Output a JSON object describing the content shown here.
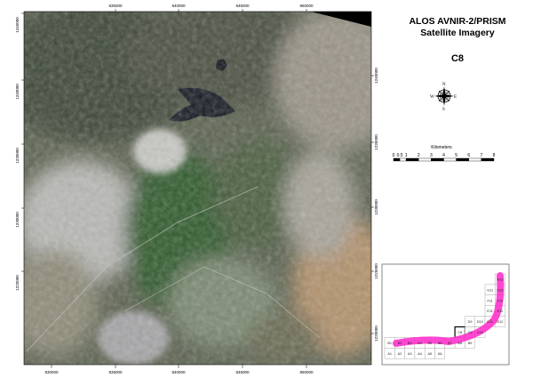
{
  "title": {
    "line1": "ALOS AVNIR-2/PRISM",
    "line2": "Satellite Imagery",
    "sheet": "C8"
  },
  "compass": {
    "icon": "north-arrow-compass-rose",
    "n": "N",
    "s": "S",
    "e": "E",
    "w": "W"
  },
  "scale_bar": {
    "unit": "Kilometers",
    "labels": [
      "0",
      "0.5",
      "1",
      "2",
      "3",
      "4",
      "5",
      "6",
      "7",
      "8"
    ]
  },
  "axes": {
    "top": [
      "835000",
      "840000",
      "845000",
      "850000"
    ],
    "bottom": [
      "830000",
      "835000",
      "840000",
      "845000",
      "850000"
    ],
    "left": [
      "1245000",
      "1240000",
      "1235000",
      "1230000",
      "1225000"
    ],
    "right": [
      "1240000",
      "1235000",
      "1230000",
      "1225000",
      "1220000"
    ]
  },
  "index_map": {
    "highlighted": "C8",
    "swath_color": "#ff33cc",
    "cells": [
      {
        "id": "H12",
        "r": 0,
        "c": 11
      },
      {
        "id": "G11",
        "r": 1,
        "c": 10
      },
      {
        "id": "G12",
        "r": 1,
        "c": 11
      },
      {
        "id": "F11",
        "r": 2,
        "c": 10
      },
      {
        "id": "F12",
        "r": 2,
        "c": 11
      },
      {
        "id": "E11",
        "r": 3,
        "c": 10
      },
      {
        "id": "E12",
        "r": 3,
        "c": 11
      },
      {
        "id": "D9",
        "r": 4,
        "c": 8
      },
      {
        "id": "D10",
        "r": 4,
        "c": 9
      },
      {
        "id": "D11",
        "r": 4,
        "c": 10
      },
      {
        "id": "D12",
        "r": 4,
        "c": 11
      },
      {
        "id": "C8",
        "r": 5,
        "c": 7
      },
      {
        "id": "C9",
        "r": 5,
        "c": 8
      },
      {
        "id": "C10",
        "r": 5,
        "c": 9
      },
      {
        "id": "B1",
        "r": 6,
        "c": 0
      },
      {
        "id": "B2",
        "r": 6,
        "c": 1
      },
      {
        "id": "B3",
        "r": 6,
        "c": 2
      },
      {
        "id": "B4",
        "r": 6,
        "c": 3
      },
      {
        "id": "B5",
        "r": 6,
        "c": 4
      },
      {
        "id": "B6",
        "r": 6,
        "c": 5
      },
      {
        "id": "B7",
        "r": 6,
        "c": 6
      },
      {
        "id": "B8",
        "r": 6,
        "c": 7
      },
      {
        "id": "B9",
        "r": 6,
        "c": 8
      },
      {
        "id": "A1",
        "r": 7,
        "c": 0
      },
      {
        "id": "A2",
        "r": 7,
        "c": 1
      },
      {
        "id": "A3",
        "r": 7,
        "c": 2
      },
      {
        "id": "A4",
        "r": 7,
        "c": 3
      },
      {
        "id": "A5",
        "r": 7,
        "c": 4
      },
      {
        "id": "A6",
        "r": 7,
        "c": 5
      }
    ]
  }
}
